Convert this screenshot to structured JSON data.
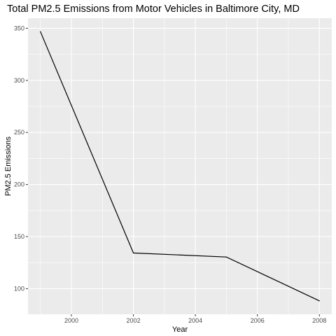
{
  "chart_data": {
    "type": "line",
    "title": "Total PM2.5 Emissions from Motor Vehicles in Baltimore City, MD",
    "xlabel": "Year",
    "ylabel": "PM2.5 Emissions",
    "x": [
      1999,
      2002,
      2005,
      2008
    ],
    "values": [
      346.8,
      134.3,
      130.4,
      88.3
    ],
    "x_ticks": [
      "2000",
      "2002",
      "2004",
      "2006",
      "2008"
    ],
    "y_ticks": [
      "100",
      "150",
      "200",
      "250",
      "300",
      "350"
    ],
    "xlim": [
      1998.6,
      2008.4
    ],
    "ylim": [
      75.4,
      359.7
    ],
    "grid": true,
    "colors": {
      "panel": "#ebebeb",
      "grid": "#ffffff",
      "line": "#000000",
      "tick_text": "#4d4d4d"
    }
  }
}
